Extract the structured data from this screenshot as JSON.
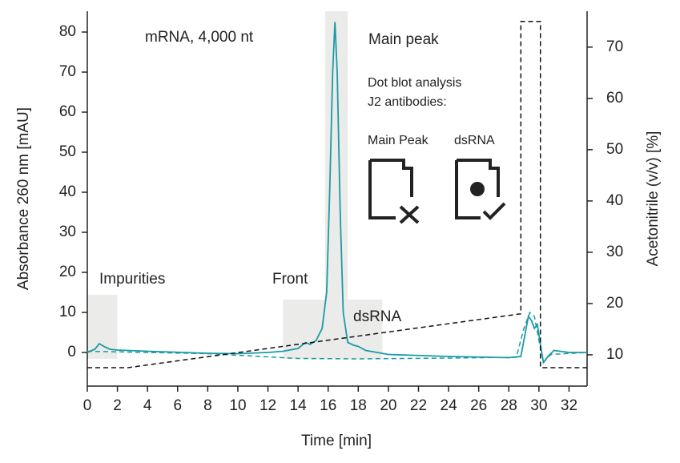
{
  "chart_data": {
    "type": "line",
    "xlabel": "Time [min]",
    "ylabel": "Absorbance 260 nm [mAU]",
    "y2label": "Acetonitrile (v/v) [%]",
    "xlim": [
      0,
      33.2
    ],
    "ylim": [
      -8.4,
      85.2
    ],
    "y2lim": [
      3.9,
      77
    ],
    "xticks": [
      0,
      2,
      4,
      6,
      8,
      10,
      12,
      14,
      16,
      18,
      20,
      22,
      24,
      26,
      28,
      30,
      32
    ],
    "yticks": [
      0,
      10,
      20,
      30,
      40,
      50,
      60,
      70,
      80
    ],
    "y2ticks": [
      10,
      20,
      30,
      40,
      50,
      60,
      70
    ],
    "shaded_regions": [
      {
        "x": [
          0,
          2
        ],
        "y": [
          -1.6,
          14.4
        ],
        "color": "#ebebe9"
      },
      {
        "x": [
          13,
          19.6
        ],
        "y": [
          -1.6,
          13.2
        ],
        "color": "#ebebe9"
      },
      {
        "x": [
          15.8,
          17.3
        ],
        "y": [
          13.2,
          85.2
        ],
        "color": "#ebebe9"
      }
    ],
    "series": [
      {
        "color": "#1a9ba6",
        "dash": false,
        "x": [
          0,
          0.5,
          0.8,
          1.1,
          1.5,
          2,
          4,
          8,
          10,
          12,
          13,
          14,
          14.5,
          14.8,
          15.2,
          15.6,
          15.9,
          16.1,
          16.3,
          16.45,
          16.6,
          16.8,
          17,
          17.3,
          17.7,
          18,
          18.5,
          20,
          24,
          28,
          28.8,
          29.1,
          29.3,
          29.5,
          29.7,
          29.9,
          30.1,
          30.3,
          30.6,
          31,
          32,
          33.2
        ],
        "values": [
          0,
          0.8,
          2.2,
          1.5,
          0.8,
          0.6,
          0.3,
          -0.2,
          -0.3,
          0,
          0.3,
          1,
          2.5,
          2,
          3,
          6,
          15,
          40,
          70,
          82.5,
          70,
          35,
          10,
          2.5,
          1.8,
          1.5,
          0.5,
          -0.5,
          -1,
          -1.3,
          -1,
          5,
          9,
          8,
          6,
          7,
          2,
          -2.5,
          -1,
          0.5,
          0,
          0
        ]
      },
      {
        "color": "#1a9ba6",
        "dash": true,
        "x": [
          0,
          8,
          14,
          18,
          24,
          28.5,
          29,
          29.4,
          29.7,
          30,
          30.3,
          30.8,
          33.2
        ],
        "values": [
          0.3,
          -0.3,
          -1.5,
          -1.6,
          -1.4,
          -1.2,
          6,
          10,
          9,
          3,
          -2.5,
          -0.5,
          0
        ]
      },
      {
        "color": "#111111",
        "dash": true,
        "axis": "y2",
        "x": [
          0,
          2.7,
          28.8,
          28.8,
          30.1,
          30.1,
          33.2
        ],
        "values": [
          7.5,
          7.5,
          18,
          75,
          75,
          7.5,
          7.5
        ]
      }
    ],
    "annotations": [
      "mRNA, 4,000 nt",
      "Main peak",
      "Dot blot analysis",
      "J2 antibodies:",
      "Main Peak",
      "dsRNA",
      "Impurities",
      "Front",
      "dsRNA"
    ]
  }
}
